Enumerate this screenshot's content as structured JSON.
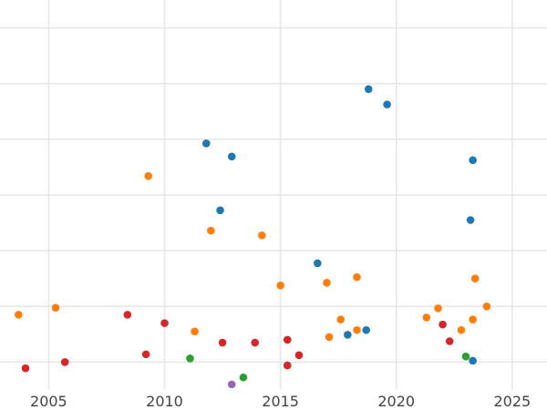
{
  "chart_data": {
    "type": "scatter",
    "title": "",
    "xlabel": "",
    "ylabel": "",
    "xlim": [
      2002.9,
      2026.5
    ],
    "ylim": [
      0,
      14
    ],
    "grid": true,
    "x_ticks": [
      2005,
      2010,
      2015,
      2020,
      2025
    ],
    "x_tick_labels": [
      "2005",
      "2010",
      "2015",
      "2020",
      "2025"
    ],
    "y_gridlines": [
      1,
      3,
      5,
      7,
      9,
      11,
      13
    ],
    "series": [
      {
        "color": "#1f77b4",
        "points": [
          {
            "x": 2018.8,
            "y": 10.8
          },
          {
            "x": 2019.6,
            "y": 10.25
          },
          {
            "x": 2011.8,
            "y": 8.85
          },
          {
            "x": 2012.9,
            "y": 8.38
          },
          {
            "x": 2023.3,
            "y": 8.25
          },
          {
            "x": 2012.4,
            "y": 6.45
          },
          {
            "x": 2023.2,
            "y": 6.1
          },
          {
            "x": 2016.6,
            "y": 4.55
          },
          {
            "x": 2018.7,
            "y": 2.15
          },
          {
            "x": 2017.9,
            "y": 1.98
          },
          {
            "x": 2023.3,
            "y": 1.05
          }
        ]
      },
      {
        "color": "#ff7f0e",
        "points": [
          {
            "x": 2009.3,
            "y": 7.68
          },
          {
            "x": 2012.0,
            "y": 5.72
          },
          {
            "x": 2014.2,
            "y": 5.55
          },
          {
            "x": 2015.0,
            "y": 3.75
          },
          {
            "x": 2017.0,
            "y": 3.85
          },
          {
            "x": 2018.3,
            "y": 4.05
          },
          {
            "x": 2023.4,
            "y": 4.0
          },
          {
            "x": 2023.9,
            "y": 3.0
          },
          {
            "x": 2005.3,
            "y": 2.95
          },
          {
            "x": 2003.7,
            "y": 2.7
          },
          {
            "x": 2021.8,
            "y": 2.93
          },
          {
            "x": 2021.3,
            "y": 2.6
          },
          {
            "x": 2017.6,
            "y": 2.53
          },
          {
            "x": 2023.3,
            "y": 2.53
          },
          {
            "x": 2011.3,
            "y": 2.1
          },
          {
            "x": 2018.3,
            "y": 2.15
          },
          {
            "x": 2022.8,
            "y": 2.15
          },
          {
            "x": 2017.1,
            "y": 1.9
          }
        ]
      },
      {
        "color": "#2ca02c",
        "points": [
          {
            "x": 2011.1,
            "y": 1.13
          },
          {
            "x": 2023.0,
            "y": 1.2
          },
          {
            "x": 2013.4,
            "y": 0.45
          }
        ]
      },
      {
        "color": "#d62728",
        "points": [
          {
            "x": 2008.4,
            "y": 2.7
          },
          {
            "x": 2010.0,
            "y": 2.4
          },
          {
            "x": 2022.0,
            "y": 2.35
          },
          {
            "x": 2015.3,
            "y": 1.8
          },
          {
            "x": 2022.3,
            "y": 1.75
          },
          {
            "x": 2012.5,
            "y": 1.7
          },
          {
            "x": 2013.9,
            "y": 1.7
          },
          {
            "x": 2009.2,
            "y": 1.28
          },
          {
            "x": 2015.8,
            "y": 1.25
          },
          {
            "x": 2005.7,
            "y": 1.0
          },
          {
            "x": 2015.3,
            "y": 0.88
          },
          {
            "x": 2004.0,
            "y": 0.78
          }
        ]
      },
      {
        "color": "#9467bd",
        "points": [
          {
            "x": 2012.9,
            "y": 0.2
          }
        ]
      }
    ]
  }
}
